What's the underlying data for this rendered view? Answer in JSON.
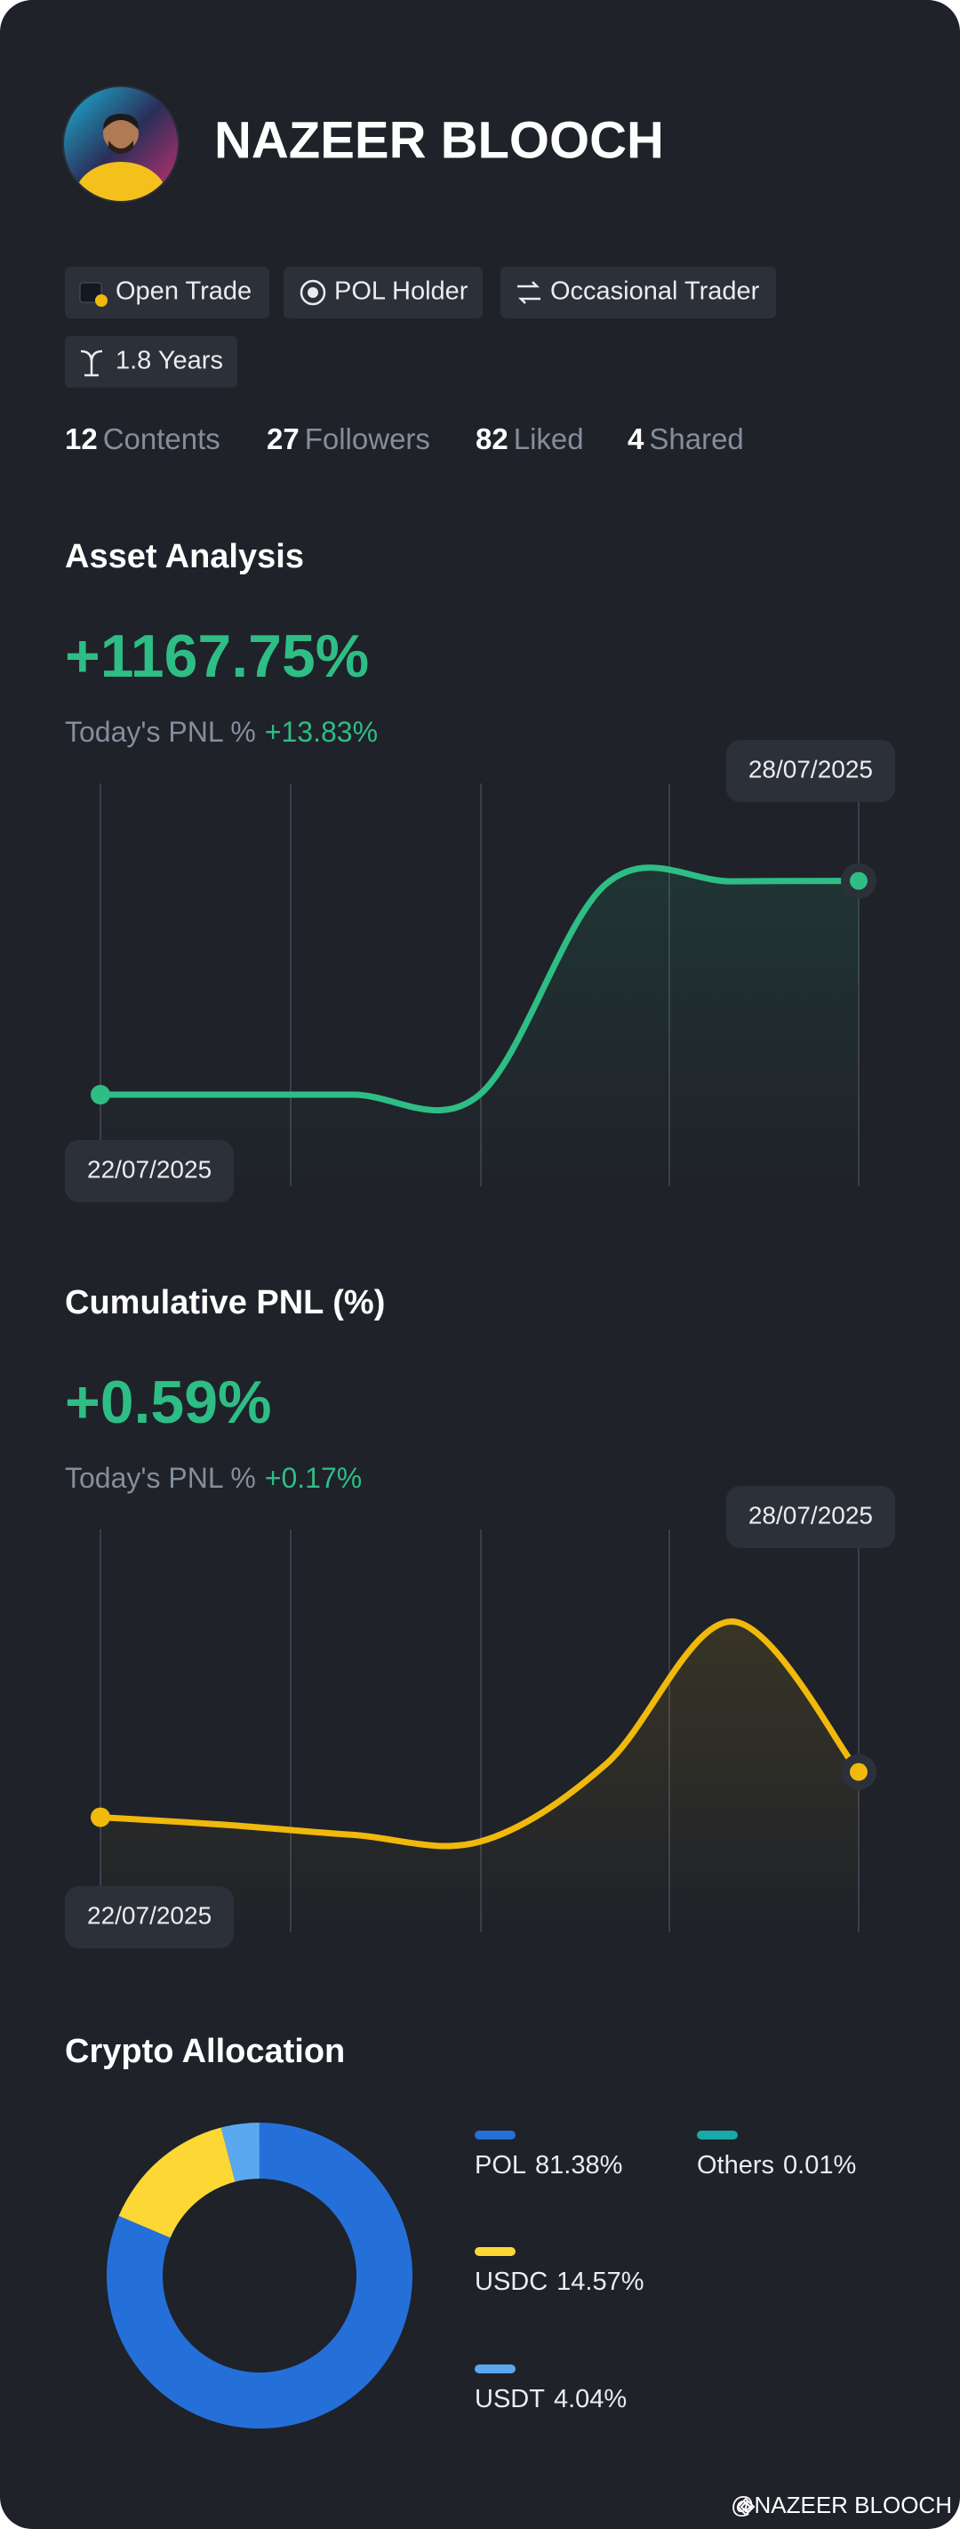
{
  "profile": {
    "name": "NAZEER BLOOCH",
    "tags": [
      "Open Trade",
      "POL Holder",
      "Occasional Trader",
      "1.8 Years"
    ],
    "stats": [
      {
        "value": 12,
        "label": "Contents"
      },
      {
        "value": 27,
        "label": "Followers"
      },
      {
        "value": 82,
        "label": "Liked"
      },
      {
        "value": 4,
        "label": "Shared"
      }
    ]
  },
  "chart_data": [
    {
      "type": "line",
      "title": "Asset Analysis",
      "headline": "+1167.75%",
      "subtitle_label": "Today's PNL %",
      "subtitle_value": "+13.83%",
      "categories": [
        "22/07/2025",
        null,
        null,
        null,
        null,
        null,
        "28/07/2025"
      ],
      "series": [
        {
          "color": "#2ebd85",
          "values": [
            0,
            0,
            0,
            0,
            1150,
            1165,
            1167.75
          ]
        }
      ],
      "ylim": [
        -500,
        1700
      ]
    },
    {
      "type": "line",
      "title": "Cumulative PNL (%)",
      "headline": "+0.59%",
      "subtitle_label": "Today's PNL %",
      "subtitle_value": "+0.17%",
      "categories": [
        "22/07/2025",
        null,
        null,
        null,
        null,
        null,
        "28/07/2025"
      ],
      "series": [
        {
          "color": "#f0b90b",
          "values": [
            0,
            -0.1,
            -0.23,
            -0.32,
            0.69,
            2.55,
            0.59
          ]
        }
      ],
      "ylim": [
        -1.5,
        3.75
      ]
    },
    {
      "type": "pie",
      "title": "Crypto Allocation",
      "categories": [
        "POL",
        "USDC",
        "USDT",
        "Others"
      ],
      "values": [
        81.38,
        14.57,
        4.04,
        0.01
      ],
      "value_labels": [
        "81.38%",
        "14.57%",
        "4.04%",
        "0.01%"
      ],
      "colors": [
        "#2470d8",
        "#fdd835",
        "#5aa9f0",
        "#1aa8a8"
      ]
    }
  ],
  "watermark": "@NAZEER BLOOCH"
}
